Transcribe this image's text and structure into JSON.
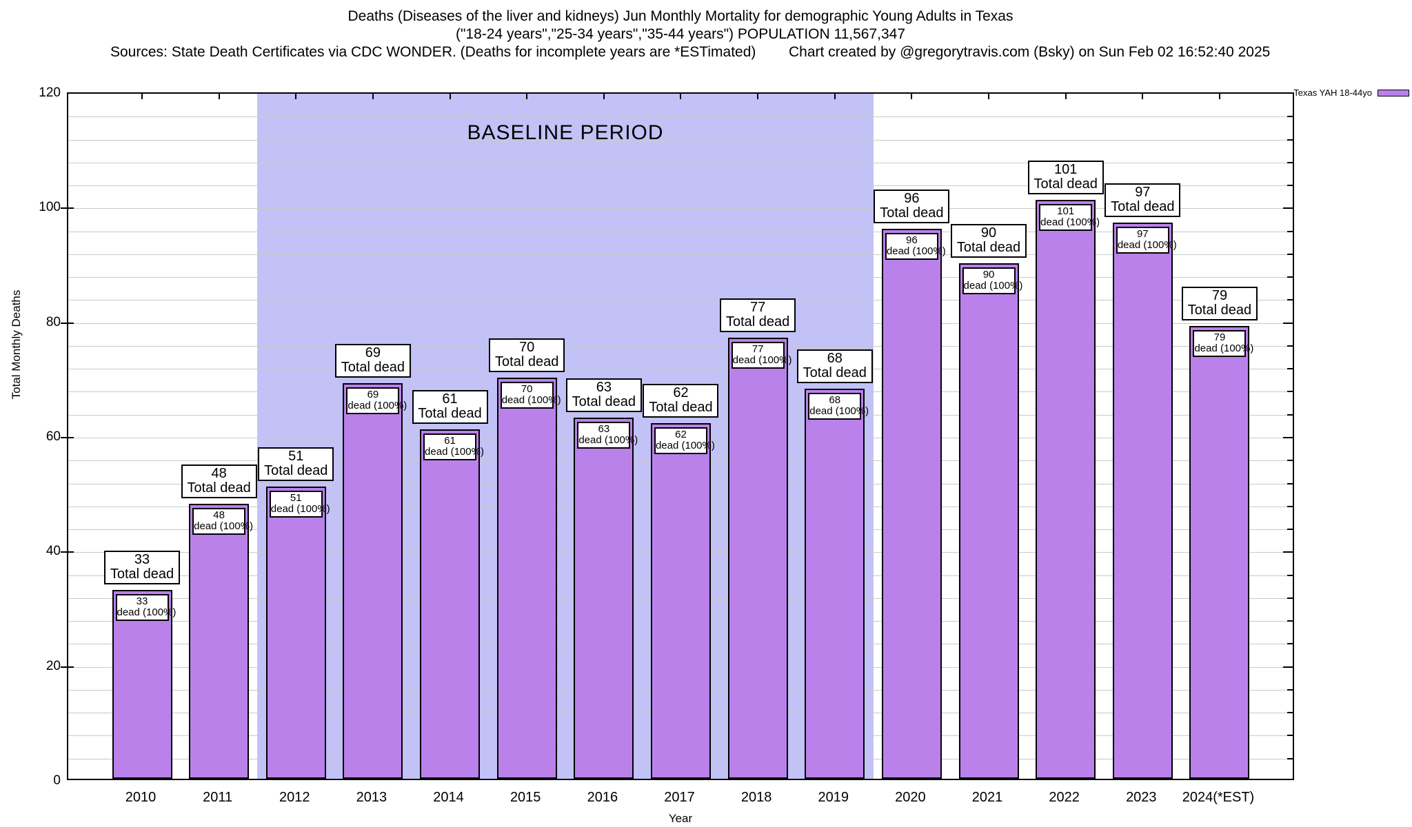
{
  "header": {
    "title_line1": "Deaths (Diseases of the liver and kidneys) Jun Monthly Mortality for demographic Young Adults in Texas",
    "title_line2": "(\"18-24 years\",\"25-34 years\",\"35-44 years\") POPULATION 11,567,347",
    "sources": "Sources: State Death Certificates via CDC WONDER. (Deaths for incomplete years are *ESTimated)",
    "credit": "Chart created by @gregorytravis.com (Bsky) on Sun Feb 02 16:52:40 2025"
  },
  "legend": {
    "label": "Texas YAH 18-44yo",
    "swatch_color": "#ba81ea"
  },
  "chart_data": {
    "type": "bar",
    "title": "Deaths (Diseases of the liver and kidneys) Jun Monthly Mortality for demographic Young Adults in Texas",
    "categories": [
      "2010",
      "2011",
      "2012",
      "2013",
      "2014",
      "2015",
      "2016",
      "2017",
      "2018",
      "2019",
      "2020",
      "2021",
      "2022",
      "2023",
      "2024(*EST)"
    ],
    "values": [
      33,
      48,
      51,
      69,
      61,
      70,
      63,
      62,
      77,
      68,
      96,
      90,
      101,
      97,
      79
    ],
    "series_name": "Texas YAH 18-44yo",
    "xlabel": "Year",
    "ylabel": "Total Monthly Deaths",
    "ylim": [
      0,
      120
    ],
    "yticks": [
      0,
      20,
      40,
      60,
      80,
      100,
      120
    ],
    "minor_grid_step": 4,
    "grid": true,
    "legend_position": "top-right-outside",
    "bar_top_label_suffix": "Total dead",
    "bar_inner_label_suffix": "dead (100%)",
    "annotation": {
      "label": "BASELINE PERIOD",
      "x_start": "2012",
      "x_end": "2019"
    },
    "colors": {
      "bar_fill": "#ba81ea",
      "bar_border": "#000000",
      "baseline_background": "#c2c2f7",
      "gridline": "#c9c9c9"
    }
  }
}
